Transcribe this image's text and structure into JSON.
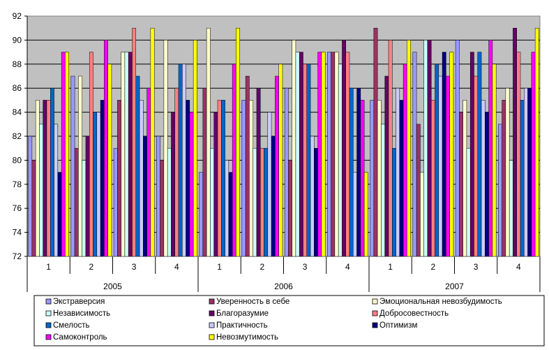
{
  "chart_data": {
    "type": "bar",
    "ylim": [
      72,
      92
    ],
    "yticks": [
      72,
      74,
      76,
      78,
      80,
      82,
      84,
      86,
      88,
      90,
      92
    ],
    "grid": true,
    "legend_position": "bottom",
    "years": [
      "2005",
      "2006",
      "2007"
    ],
    "quarters": [
      "1",
      "2",
      "3",
      "4"
    ],
    "categories": [
      "2005 Q1",
      "2005 Q2",
      "2005 Q3",
      "2005 Q4",
      "2006 Q1",
      "2006 Q2",
      "2006 Q3",
      "2006 Q4",
      "2007 Q1",
      "2007 Q2",
      "2007 Q3",
      "2007 Q4"
    ],
    "series": [
      {
        "name": "Экстраверсия",
        "color": "#9999FF",
        "values": [
          82,
          87,
          81,
          82,
          79,
          85,
          86,
          89,
          85,
          89,
          90,
          83
        ]
      },
      {
        "name": "Уверенность в себе",
        "color": "#993366",
        "values": [
          80,
          81,
          85,
          80,
          86,
          87,
          80,
          89,
          91,
          83,
          84,
          85
        ]
      },
      {
        "name": "Эмоциональная невозбудимость",
        "color": "#FFFFCC",
        "values": [
          85,
          87,
          89,
          90,
          91,
          85,
          90,
          89,
          85,
          79,
          85,
          86
        ]
      },
      {
        "name": "Независимость",
        "color": "#CCFFFF",
        "values": [
          83,
          80,
          89,
          81,
          81,
          81,
          89,
          88,
          83,
          90,
          81,
          80
        ]
      },
      {
        "name": "Благоразумие",
        "color": "#660066",
        "values": [
          85,
          82,
          89,
          84,
          84,
          86,
          89,
          90,
          87,
          90,
          89,
          91
        ]
      },
      {
        "name": "Добросовестность",
        "color": "#FF8080",
        "values": [
          85,
          89,
          91,
          86,
          85,
          81,
          88,
          89,
          90,
          85,
          87,
          89
        ]
      },
      {
        "name": "Смелость",
        "color": "#0066CC",
        "values": [
          86,
          84,
          87,
          88,
          85,
          81,
          88,
          86,
          81,
          88,
          89,
          85
        ]
      },
      {
        "name": "Практичность",
        "color": "#CCCCFF",
        "values": [
          83,
          84,
          85,
          88,
          80,
          84,
          82,
          79,
          86,
          87,
          85,
          86
        ]
      },
      {
        "name": "Оптимизм",
        "color": "#000080",
        "values": [
          79,
          85,
          82,
          85,
          79,
          82,
          81,
          86,
          85,
          89,
          84,
          86
        ]
      },
      {
        "name": "Самоконтроль",
        "color": "#FF00FF",
        "values": [
          89,
          90,
          86,
          84,
          88,
          87,
          89,
          85,
          88,
          87,
          90,
          89
        ]
      },
      {
        "name": "Невозмутимость",
        "color": "#FFFF00",
        "values": [
          89,
          88,
          91,
          90,
          91,
          88,
          89,
          79,
          90,
          89,
          88,
          91
        ]
      }
    ]
  }
}
